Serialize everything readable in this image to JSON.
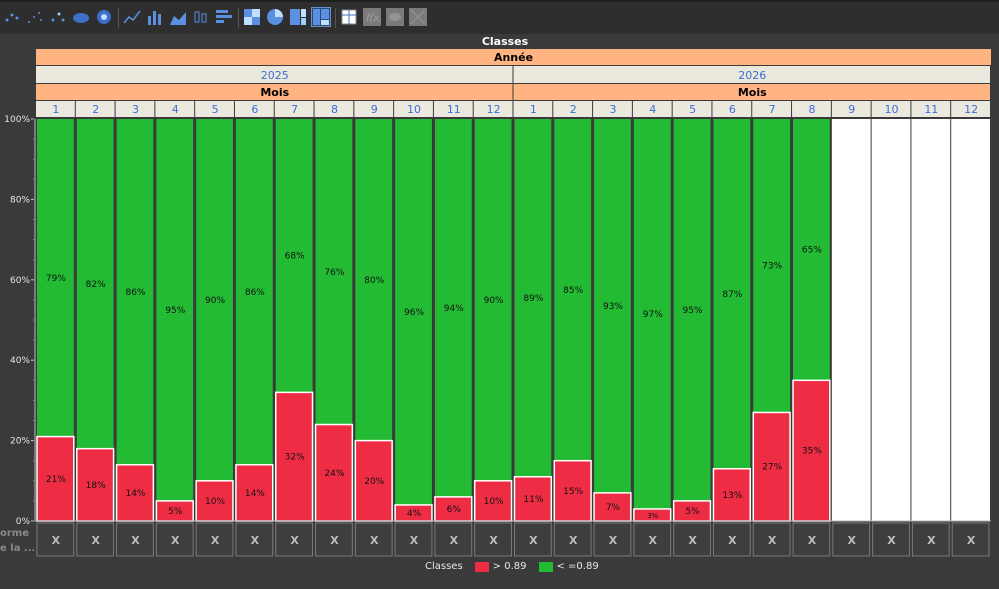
{
  "toolbar": {
    "tools": [
      {
        "icon": "scatter-plot-icon"
      },
      {
        "icon": "scatter-small-icon"
      },
      {
        "icon": "scatter-color-icon"
      },
      {
        "icon": "bubble-icon"
      },
      {
        "icon": "contour-icon"
      },
      {
        "icon": "line-chart-icon"
      },
      {
        "icon": "bar-chart-icon"
      },
      {
        "icon": "area-chart-icon"
      },
      {
        "icon": "box-plot-icon"
      },
      {
        "icon": "horizontal-bar-icon"
      },
      {
        "icon": "heatmap-icon"
      },
      {
        "icon": "pie-chart-icon"
      },
      {
        "icon": "treemap-icon"
      },
      {
        "icon": "mosaic-icon"
      },
      {
        "icon": "table-icon"
      },
      {
        "icon": "formula-icon"
      },
      {
        "icon": "map-icon"
      },
      {
        "icon": "network-icon"
      }
    ]
  },
  "side": {
    "line1": "orme",
    "line2": "e la ..."
  },
  "colors": {
    "red": "#ee2d45",
    "green": "#22bb33",
    "header_orange": "#ffb482",
    "header_grey": "#ebe9de",
    "month_blue": "#3a6fd8"
  },
  "chart_data": {
    "type": "bar",
    "stacked": "percent",
    "title": "Classes",
    "group_header": "Année",
    "sub_header": "Mois",
    "ylim": [
      0,
      100
    ],
    "yticks": [
      "0%",
      "20%",
      "40%",
      "60%",
      "80%",
      "100%"
    ],
    "years": [
      {
        "year": "2025",
        "months": [
          "1",
          "2",
          "3",
          "4",
          "5",
          "6",
          "7",
          "8",
          "9",
          "10",
          "11",
          "12"
        ]
      },
      {
        "year": "2026",
        "months": [
          "1",
          "2",
          "3",
          "4",
          "5",
          "6",
          "7",
          "8",
          "9",
          "10",
          "11",
          "12"
        ]
      }
    ],
    "series": [
      {
        "name": "> 0.89",
        "color": "#ee2d45",
        "values": [
          21,
          18,
          14,
          5,
          10,
          14,
          32,
          24,
          20,
          4,
          6,
          10,
          11,
          15,
          7,
          3,
          5,
          13,
          27,
          35,
          null,
          null,
          null,
          null
        ],
        "labels": [
          "21%",
          "18%",
          "14%",
          "5%",
          "10%",
          "14%",
          "32%",
          "24%",
          "20%",
          "4%",
          "6%",
          "10%",
          "11%",
          "15%",
          "7%",
          "3%",
          "5%",
          "13%",
          "27%",
          "35%",
          null,
          null,
          null,
          null
        ]
      },
      {
        "name": "< =0.89",
        "color": "#22bb33",
        "values": [
          79,
          82,
          86,
          95,
          90,
          86,
          68,
          76,
          80,
          96,
          94,
          90,
          89,
          85,
          93,
          97,
          95,
          87,
          73,
          65,
          null,
          null,
          null,
          null
        ],
        "labels": [
          "79%",
          "82%",
          "86%",
          "95%",
          "90%",
          "86%",
          "68%",
          "76%",
          "80%",
          "96%",
          "94%",
          "90%",
          "89%",
          "85%",
          "93%",
          "97%",
          "95%",
          "87%",
          "73%",
          "65%",
          null,
          null,
          null,
          null
        ]
      }
    ],
    "bottom_cell_text": "X",
    "legend_title": "Classes",
    "legend_position": "bottom-center",
    "grid": false
  }
}
